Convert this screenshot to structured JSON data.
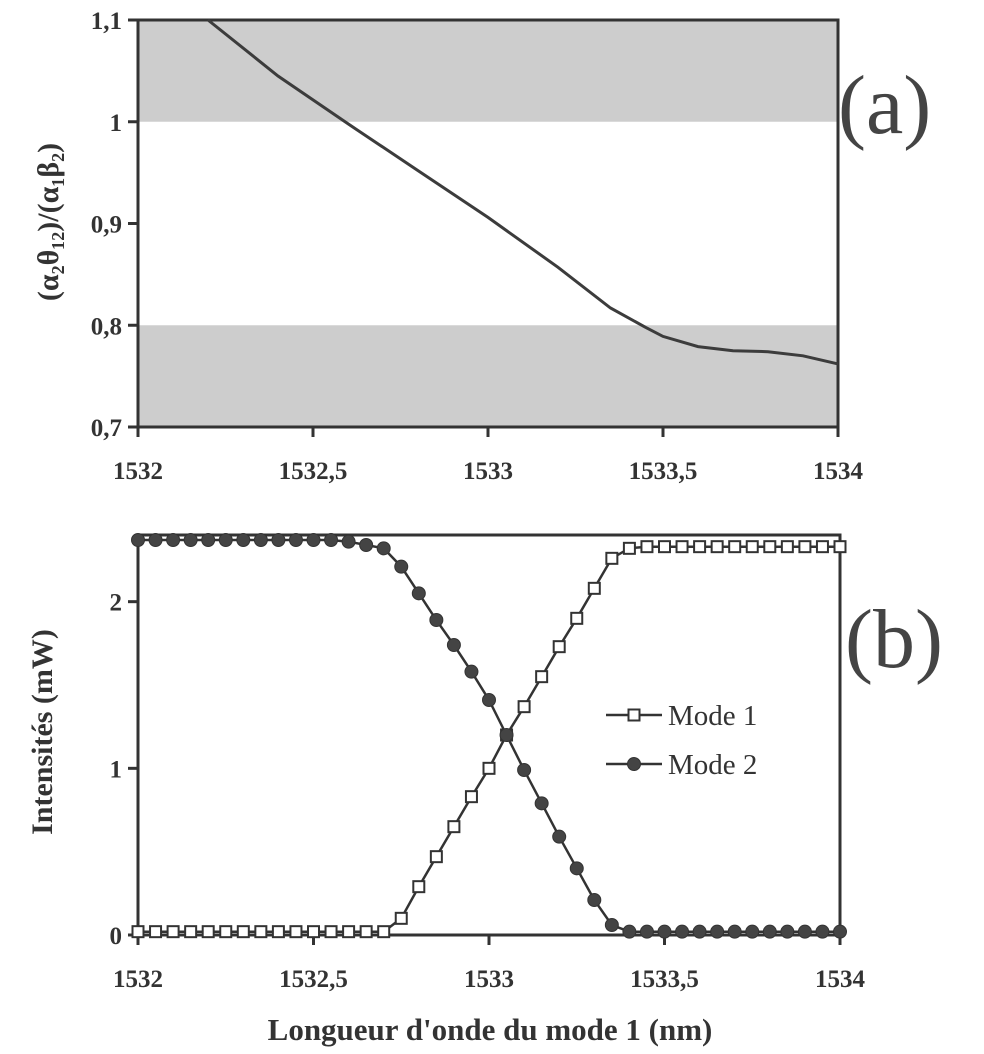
{
  "chart_data": [
    {
      "type": "line",
      "panel_label": "(a)",
      "xlabel": "",
      "ylabel": "(α₂θ₁₂)/(α₁β₂)",
      "xlim": [
        1532,
        1534
      ],
      "ylim": [
        0.7,
        1.1
      ],
      "x_ticks": [
        1532,
        1532.5,
        1533,
        1533.5,
        1534
      ],
      "x_tick_labels": [
        "1532",
        "1532,5",
        "1533",
        "1533,5",
        "1534"
      ],
      "y_ticks": [
        0.7,
        0.8,
        0.9,
        1.0,
        1.1
      ],
      "y_tick_labels": [
        "0,7",
        "0,8",
        "0,9",
        "1",
        "1,1"
      ],
      "shaded_bands": [
        [
          1.0,
          1.1
        ],
        [
          0.7,
          0.8
        ]
      ],
      "grid": false,
      "series": [
        {
          "x": [
            1532.2,
            1532.4,
            1532.6,
            1532.8,
            1533.0,
            1533.2,
            1533.35,
            1533.45,
            1533.5,
            1533.6,
            1533.7,
            1533.8,
            1533.9,
            1534.0
          ],
          "y": [
            1.1,
            1.045,
            0.998,
            0.952,
            0.906,
            0.857,
            0.817,
            0.798,
            0.789,
            0.779,
            0.775,
            0.774,
            0.77,
            0.762
          ],
          "color": "#3c3c3c"
        }
      ]
    },
    {
      "type": "line",
      "panel_label": "(b)",
      "xlabel": "Longueur d'onde du mode 1 (nm)",
      "ylabel": "Intensités (mW)",
      "xlim": [
        1532,
        1534
      ],
      "ylim": [
        0,
        2.4
      ],
      "x_ticks": [
        1532,
        1532.5,
        1533,
        1533.5,
        1534
      ],
      "x_tick_labels": [
        "1532",
        "1532,5",
        "1533",
        "1533,5",
        "1534"
      ],
      "y_ticks": [
        0,
        1,
        2
      ],
      "y_tick_labels": [
        "0",
        "1",
        "2"
      ],
      "legend_position": "center-right",
      "grid": false,
      "x": [
        1532.0,
        1532.05,
        1532.1,
        1532.15,
        1532.2,
        1532.25,
        1532.3,
        1532.35,
        1532.4,
        1532.45,
        1532.5,
        1532.55,
        1532.6,
        1532.65,
        1532.7,
        1532.75,
        1532.8,
        1532.85,
        1532.9,
        1532.95,
        1533.0,
        1533.05,
        1533.1,
        1533.15,
        1533.2,
        1533.25,
        1533.3,
        1533.35,
        1533.4,
        1533.45,
        1533.5,
        1533.55,
        1533.6,
        1533.65,
        1533.7,
        1533.75,
        1533.8,
        1533.85,
        1533.9,
        1533.95,
        1534.0
      ],
      "series": [
        {
          "name": "Mode 1",
          "marker": "open-square",
          "values": [
            0.02,
            0.02,
            0.02,
            0.02,
            0.02,
            0.02,
            0.02,
            0.02,
            0.02,
            0.02,
            0.02,
            0.02,
            0.02,
            0.02,
            0.02,
            0.1,
            0.29,
            0.47,
            0.65,
            0.83,
            1.0,
            1.2,
            1.37,
            1.55,
            1.73,
            1.9,
            2.08,
            2.26,
            2.32,
            2.33,
            2.33,
            2.33,
            2.33,
            2.33,
            2.33,
            2.33,
            2.33,
            2.33,
            2.33,
            2.33,
            2.33
          ]
        },
        {
          "name": "Mode 2",
          "marker": "filled-circle",
          "values": [
            2.37,
            2.37,
            2.37,
            2.37,
            2.37,
            2.37,
            2.37,
            2.37,
            2.37,
            2.37,
            2.37,
            2.37,
            2.36,
            2.34,
            2.32,
            2.21,
            2.05,
            1.89,
            1.74,
            1.58,
            1.41,
            1.2,
            0.99,
            0.79,
            0.59,
            0.4,
            0.21,
            0.06,
            0.02,
            0.02,
            0.02,
            0.02,
            0.02,
            0.02,
            0.02,
            0.02,
            0.02,
            0.02,
            0.02,
            0.02,
            0.02
          ]
        }
      ]
    }
  ]
}
